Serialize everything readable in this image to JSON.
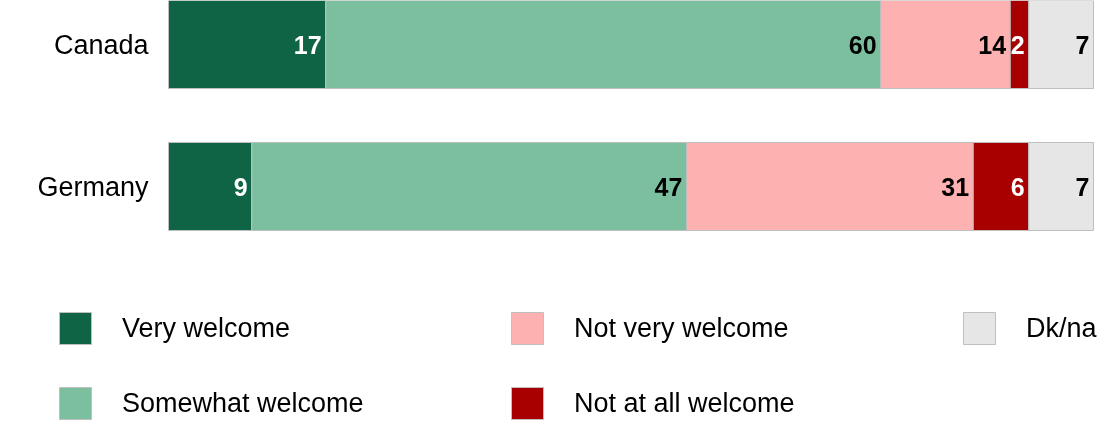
{
  "chart_data": {
    "type": "bar",
    "orientation": "horizontal",
    "stacked": true,
    "data_labels": true,
    "legend": "bottom",
    "categories": [
      "Canada",
      "Germany"
    ],
    "series": [
      {
        "name": "Very welcome",
        "color": "#0f6446",
        "values": [
          17,
          9
        ]
      },
      {
        "name": "Somewhat welcome",
        "color": "#7bbf9f",
        "values": [
          60,
          47
        ]
      },
      {
        "name": "Not very welcome",
        "color": "#fdb1b1",
        "values": [
          14,
          31
        ]
      },
      {
        "name": "Not at all welcome",
        "color": "#a80000",
        "values": [
          2,
          6
        ]
      },
      {
        "name": "Dk/na",
        "color": "#e6e6e6",
        "values": [
          7,
          7
        ]
      }
    ],
    "xlim": [
      0,
      100
    ]
  }
}
